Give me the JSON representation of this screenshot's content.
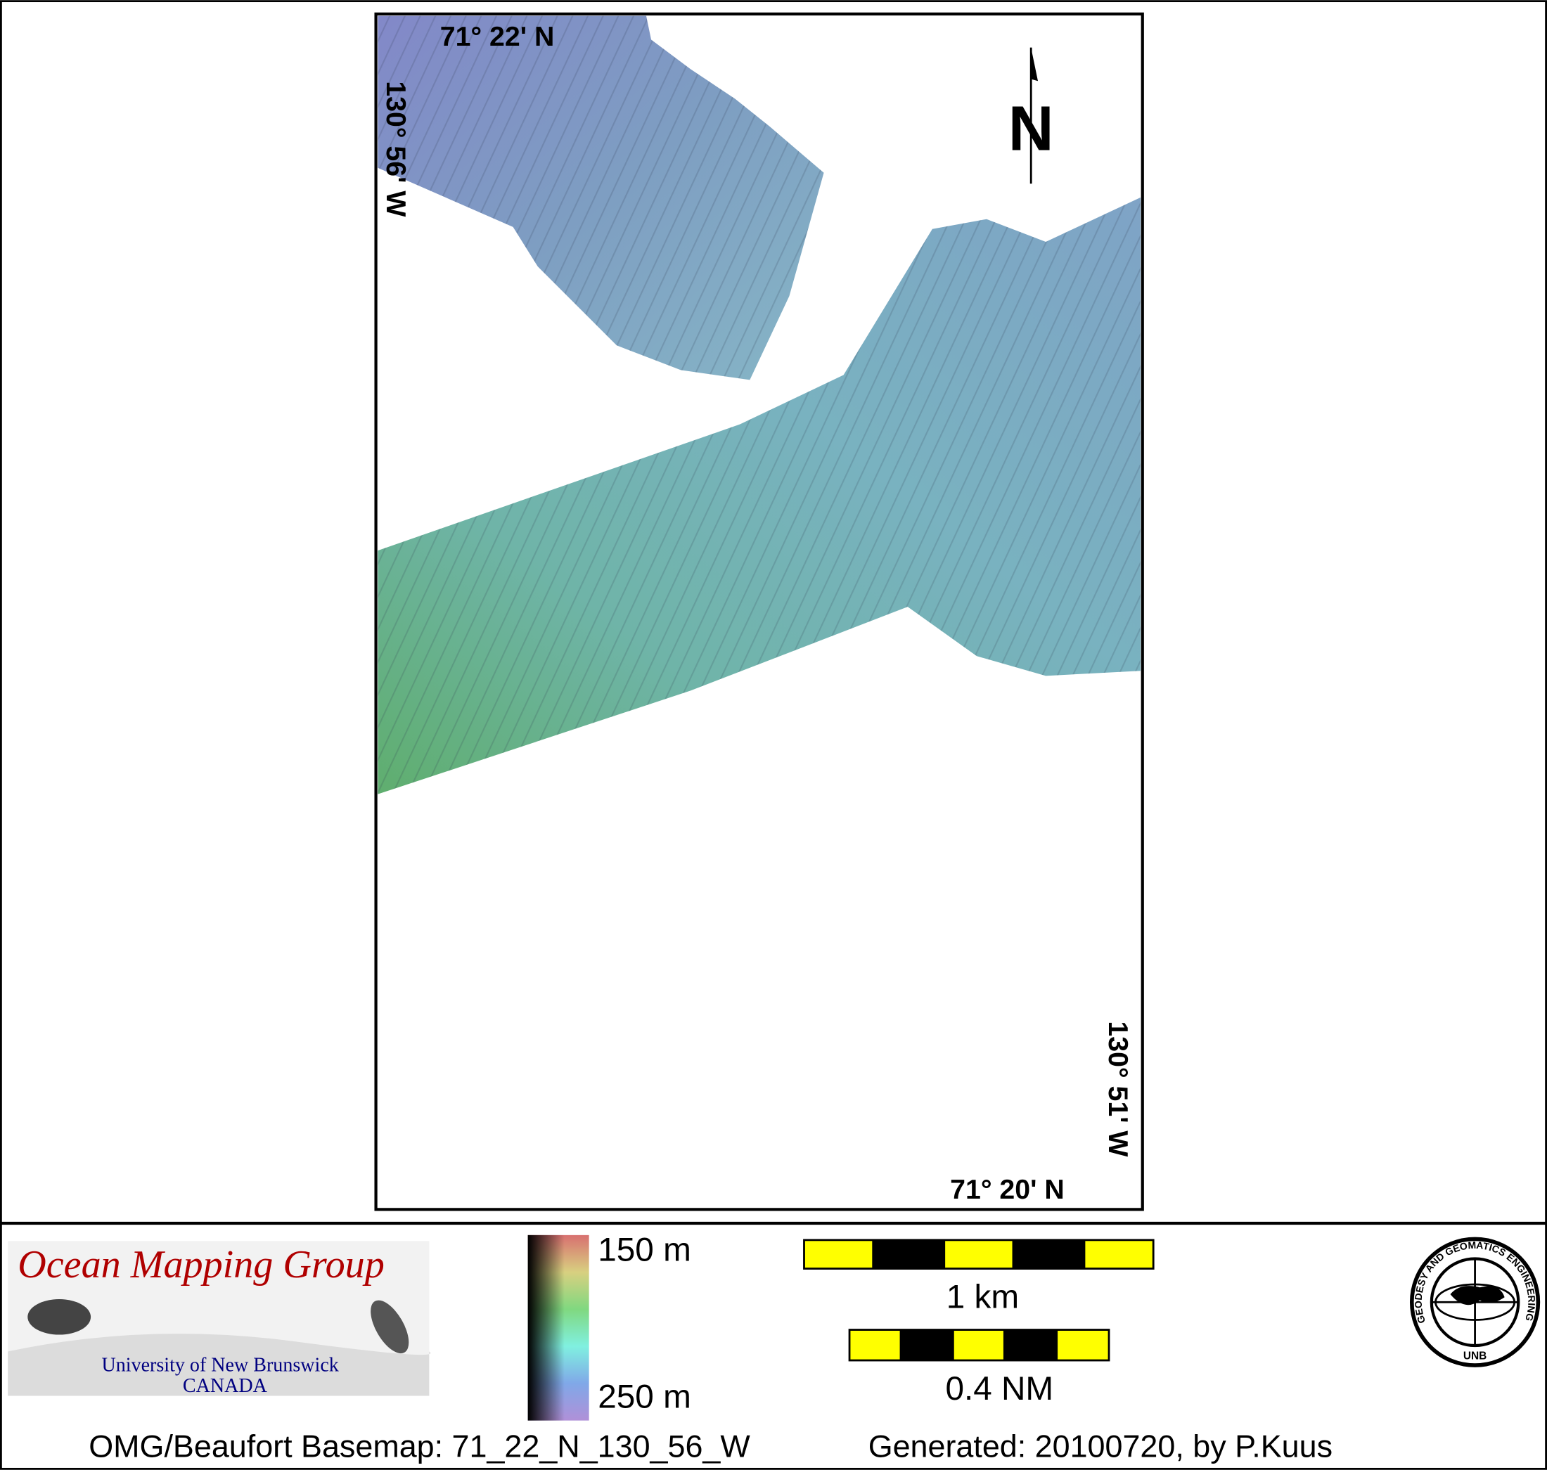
{
  "map": {
    "labels": {
      "top_lat": "71° 22' N",
      "left_lon": "130° 56' W",
      "bottom_lat": "71° 20' N",
      "right_lon": "130° 51' W"
    },
    "north_label": "N"
  },
  "legend": {
    "depth_top": "150 m",
    "depth_bottom": "250 m",
    "scale_km": "1 km",
    "scale_nm": "0.4 NM"
  },
  "logo": {
    "title": "Ocean Mapping Group",
    "line1": "University of New Brunswick",
    "line2": "CANADA",
    "seal_text": "GEODESY AND GEOMATICS ENGINEERING",
    "seal_bottom": "UNB"
  },
  "footer": {
    "basemap": "OMG/Beaufort Basemap: 71_22_N_130_56_W",
    "generated": "Generated: 20100720, by P.Kuus"
  },
  "colors": {
    "scale_yellow": "#ffff00",
    "logo_red": "#b00000",
    "seal_red": "#ff0000",
    "navy": "#000080"
  }
}
